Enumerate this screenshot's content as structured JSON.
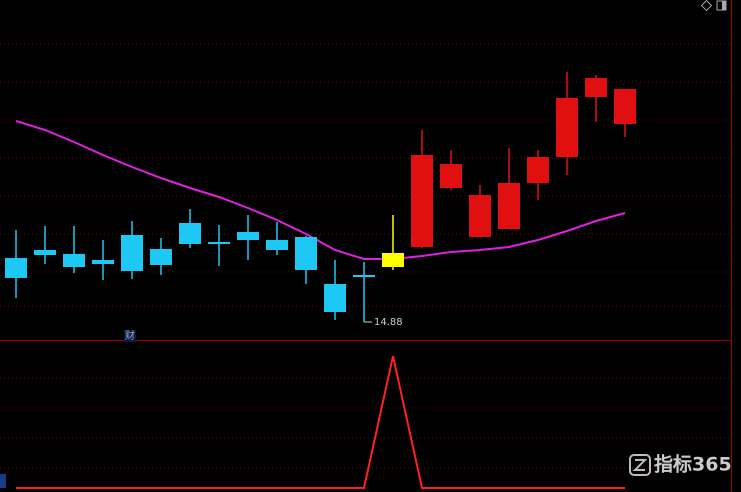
{
  "chart_data": [
    {
      "type": "candlestick",
      "open": [
        15.52,
        15.6,
        15.56,
        15.5,
        15.75,
        15.61,
        15.87,
        15.68,
        15.78,
        15.7,
        15.73,
        15.26,
        15.35,
        15.43,
        15.63,
        16.22,
        15.73,
        15.81,
        16.27,
        16.53,
        17.13,
        16.86
      ],
      "close": [
        15.32,
        15.55,
        15.43,
        15.46,
        15.39,
        15.45,
        15.66,
        15.66,
        15.7,
        15.6,
        15.4,
        14.98,
        15.33,
        15.57,
        16.55,
        16.46,
        16.15,
        16.27,
        16.53,
        17.12,
        17.32,
        17.21
      ],
      "high": [
        15.8,
        15.84,
        15.84,
        15.7,
        15.89,
        15.72,
        16.01,
        15.85,
        15.95,
        15.88,
        15.74,
        15.5,
        15.48,
        15.95,
        16.8,
        16.6,
        16.25,
        16.62,
        16.6,
        17.38,
        17.35,
        17.21
      ],
      "low": [
        15.12,
        15.46,
        15.37,
        15.3,
        15.31,
        15.35,
        15.62,
        15.44,
        15.5,
        15.55,
        15.26,
        14.9,
        14.88,
        15.4,
        15.62,
        16.2,
        15.73,
        15.81,
        16.1,
        16.35,
        16.88,
        16.73
      ],
      "colors": [
        "#1ec8f5",
        "#1ec8f5",
        "#1ec8f5",
        "#1ec8f5",
        "#1ec8f5",
        "#1ec8f5",
        "#1ec8f5",
        "#1ec8f5",
        "#1ec8f5",
        "#1ec8f5",
        "#1ec8f5",
        "#1ec8f5",
        "#1ec8f5",
        "#ffff00",
        "#e01010",
        "#e01010",
        "#e01010",
        "#e01010",
        "#e01010",
        "#e01010",
        "#e01010",
        "#e01010"
      ],
      "ylim": [
        14.7,
        18.1
      ],
      "series": [
        {
          "color": "#e020e0",
          "values": [
            16.89,
            16.8,
            16.68,
            16.55,
            16.43,
            16.32,
            16.22,
            16.13,
            16.02,
            15.9,
            15.76,
            15.6,
            15.51,
            15.51,
            15.54,
            15.58,
            15.6,
            15.63,
            15.7,
            15.79,
            15.89,
            15.97
          ]
        }
      ],
      "low_label_index": 12,
      "annotation": "财",
      "watermark": "指标365"
    },
    {
      "type": "line",
      "series": [
        {
          "color": "#ff2020",
          "values": [
            0,
            0,
            0,
            0,
            0,
            0,
            0,
            0,
            0,
            0,
            0,
            0,
            0,
            1,
            0,
            0,
            0,
            0,
            0,
            0,
            0,
            0
          ]
        }
      ],
      "ylim": [
        0,
        1
      ]
    }
  ]
}
